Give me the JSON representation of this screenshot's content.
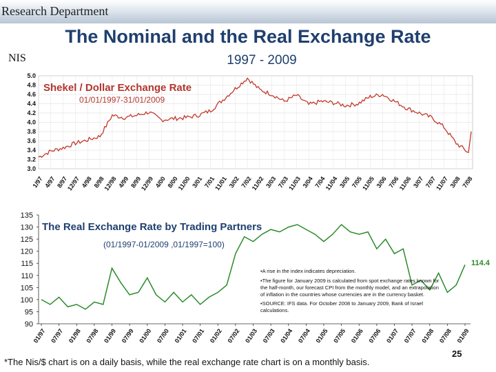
{
  "header": {
    "department": "Research Department",
    "title": "The Nominal and the Real Exchange Rate",
    "unit": "NIS",
    "years": "1997 - 2009"
  },
  "colors": {
    "line": "#c0392b",
    "title_blue": "#1f3f6e"
  },
  "chart_data": [
    {
      "type": "line",
      "title": "Shekel / Dollar Exchange Rate",
      "subtitle": "01/01/1997-31/01/2009",
      "ylim": [
        3.0,
        5.0
      ],
      "yticks": [
        "3.0",
        "3.2",
        "3.4",
        "3.6",
        "3.8",
        "4.0",
        "4.2",
        "4.4",
        "4.6",
        "4.8",
        "5.0"
      ],
      "xticks": [
        "1/97",
        "4/97",
        "8/97",
        "12/97",
        "4/98",
        "8/98",
        "12/98",
        "4/99",
        "8/99",
        "12/99",
        "4/00",
        "8/00",
        "11/00",
        "3/01",
        "7/01",
        "11/01",
        "3/02",
        "7/02",
        "11/02",
        "3/03",
        "7/03",
        "11/03",
        "3/04",
        "7/04",
        "11/04",
        "3/05",
        "7/05",
        "11/05",
        "3/06",
        "7/06",
        "11/06",
        "3/07",
        "7/07",
        "11/07",
        "3/08",
        "7/08"
      ],
      "grid": true,
      "series": [
        {
          "x": [
            0,
            1,
            2,
            3,
            4,
            5,
            6,
            7,
            8,
            9,
            10,
            11,
            12,
            13,
            14,
            15,
            16,
            17,
            18,
            19,
            20,
            21,
            22,
            23,
            24,
            25,
            26,
            27,
            28,
            29,
            30,
            31,
            32,
            33,
            34,
            35
          ],
          "y": [
            3.25,
            3.38,
            3.45,
            3.55,
            3.62,
            3.7,
            4.15,
            4.1,
            4.15,
            4.22,
            4.05,
            4.08,
            4.1,
            4.15,
            4.25,
            4.48,
            4.72,
            4.95,
            4.7,
            4.6,
            4.45,
            4.58,
            4.38,
            4.45,
            4.42,
            4.36,
            4.4,
            4.55,
            4.6,
            4.45,
            4.3,
            4.2,
            4.1,
            3.9,
            3.55,
            3.35
          ]
        }
      ]
    },
    {
      "type": "line",
      "title": "The Real Exchange Rate by Trading Partners",
      "subtitle": "(01/1997-01/2009 ,01/1997=100)",
      "ylim": [
        90,
        135
      ],
      "yticks": [
        "90",
        "95",
        "100",
        "105",
        "110",
        "115",
        "120",
        "125",
        "130",
        "135"
      ],
      "xticks": [
        "01/97",
        "07/97",
        "01/98",
        "07/98",
        "01/99",
        "07/99",
        "01/00",
        "07/00",
        "01/01",
        "07/01",
        "01/02",
        "07/02",
        "01/03",
        "07/03",
        "01/04",
        "07/04",
        "01/05",
        "07/05",
        "01/06",
        "07/06",
        "01/07",
        "07/07",
        "01/08",
        "07/08",
        "01/09"
      ],
      "end_label": "114.4",
      "notes": [
        "•A rise in the index indicates depreciation.",
        "•The figure for January 2009 is calculated from spot exchange rates known for",
        "the half-month, our forecast CPI  from the monthly model,  and an extrapolation",
        "of inflation in the countries whose currencies are in the currency basket.",
        "•SOURCE: IFS data. For October 2008 to January 2009, Bank of Israel",
        "calculations."
      ],
      "series": [
        {
          "x": [
            0,
            0.5,
            1,
            1.5,
            2,
            2.5,
            3,
            3.5,
            4,
            4.5,
            5,
            5.5,
            6,
            6.5,
            7,
            7.5,
            8,
            8.5,
            9,
            9.5,
            10,
            10.5,
            11,
            11.5,
            12,
            12.5,
            13,
            13.5,
            14,
            14.5,
            15,
            15.5,
            16,
            16.5,
            17,
            17.5,
            18,
            18.5,
            19,
            19.5,
            20,
            20.5,
            21,
            21.5,
            22,
            22.5,
            23,
            23.5,
            24
          ],
          "y": [
            100,
            98,
            101,
            97,
            98,
            96,
            99,
            98,
            113,
            107,
            102,
            103,
            109,
            102,
            99,
            103,
            99,
            102,
            98,
            101,
            103,
            106,
            119,
            126,
            124,
            127,
            129,
            128,
            130,
            131,
            129,
            127,
            124,
            127,
            131,
            128,
            127,
            128,
            121,
            125,
            119,
            121,
            106,
            108,
            104,
            111,
            103,
            106,
            114.4
          ]
        }
      ]
    }
  ],
  "footer": {
    "footnote": "*The Nis/$ chart is on a daily basis, while the real exchange rate chart is on a monthly basis.",
    "page": "25"
  }
}
